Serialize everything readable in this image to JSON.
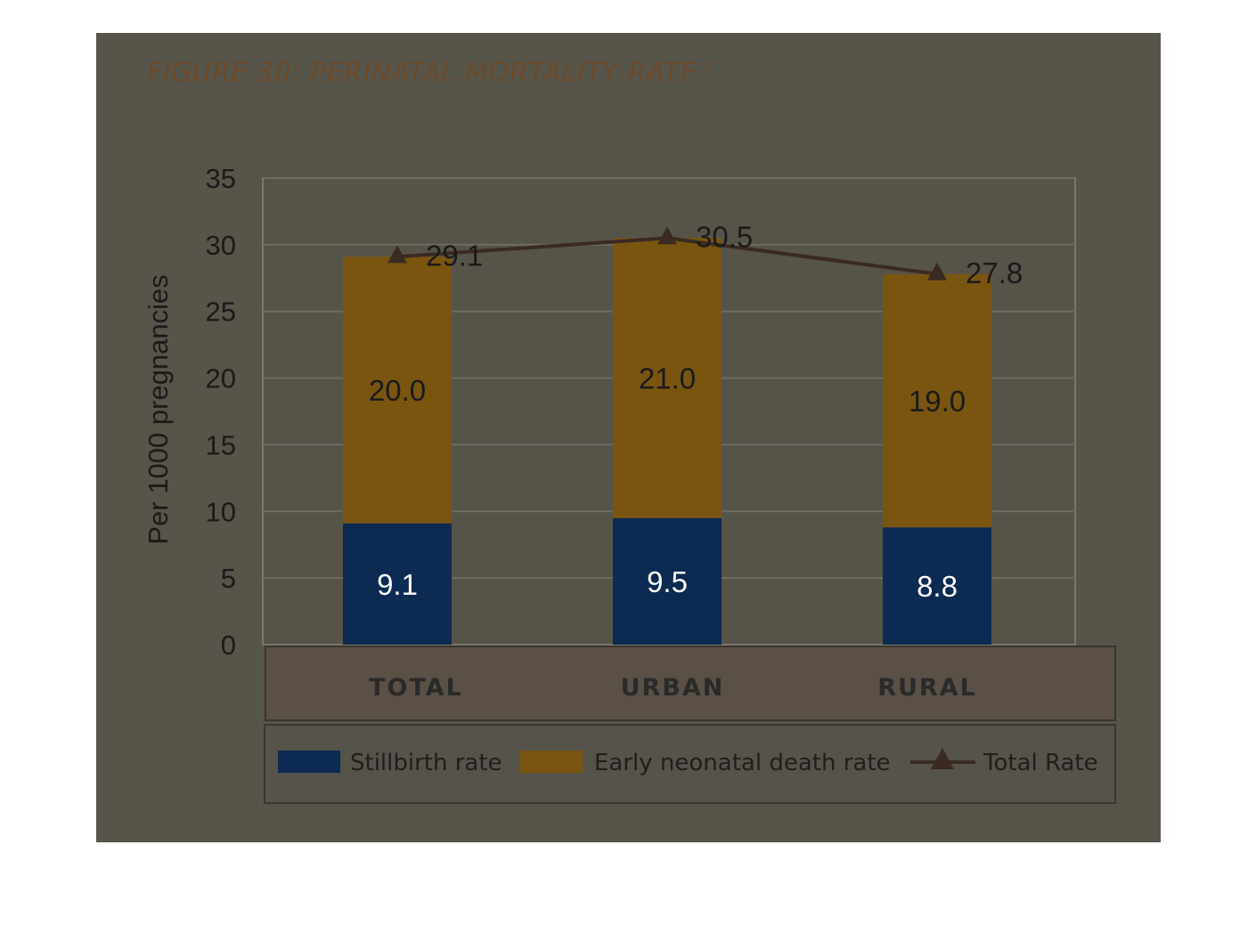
{
  "title": "FIGURE 30: PERINATAL MORTALITY RATE",
  "title_footnote": "7",
  "colors": {
    "panel_bg": "#57544a",
    "stillbirth": "#0d2a52",
    "stillbirth_highlight": "#1878e8",
    "neonatal": "#7a5510",
    "total_line": "#3b2a22"
  },
  "chart_data": {
    "type": "bar",
    "stacked": true,
    "categories": [
      "TOTAL",
      "URBAN",
      "RURAL"
    ],
    "ylabel": "Per 1000 pregnancies",
    "ylim": [
      0,
      35
    ],
    "yticks": [
      0,
      5,
      10,
      15,
      20,
      25,
      30,
      35
    ],
    "grid": true,
    "legend_position": "bottom",
    "series": [
      {
        "name": "Stillbirth rate",
        "type": "bar",
        "values": [
          9.1,
          9.5,
          8.8
        ],
        "labels": [
          "9.1",
          "9.5",
          "8.8"
        ]
      },
      {
        "name": "Early neonatal death rate",
        "type": "bar",
        "values": [
          20.0,
          21.0,
          19.0
        ],
        "labels": [
          "20.0",
          "21.0",
          "19.0"
        ]
      },
      {
        "name": "Total Rate",
        "type": "line",
        "marker": "triangle",
        "values": [
          29.1,
          30.5,
          27.8
        ],
        "labels": [
          "29.1",
          "30.5",
          "27.8"
        ]
      }
    ]
  }
}
